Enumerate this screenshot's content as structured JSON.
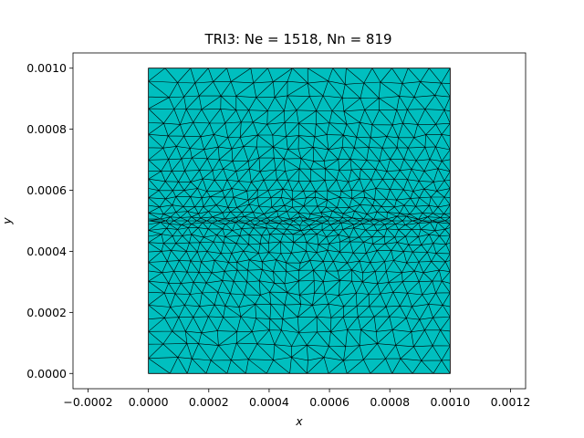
{
  "chart_data": {
    "type": "mesh",
    "title": "TRI3: Ne = 1518, Nn = 819",
    "xlabel": "x",
    "ylabel": "y",
    "xlim": [
      -0.00025,
      0.00125
    ],
    "ylim": [
      -5e-05,
      0.00105
    ],
    "domain": {
      "x": [
        0.0,
        0.001
      ],
      "y": [
        0.0,
        0.001
      ]
    },
    "element_count": 1518,
    "node_count": 819,
    "refinement_line_y": 0.0005,
    "fill_color": "#00bfbf",
    "edge_color": "#000000",
    "x_ticks": [
      {
        "value": -0.0002,
        "label": "−0.0002"
      },
      {
        "value": 0.0,
        "label": "0.0000"
      },
      {
        "value": 0.0002,
        "label": "0.0002"
      },
      {
        "value": 0.0004,
        "label": "0.0004"
      },
      {
        "value": 0.0006,
        "label": "0.0006"
      },
      {
        "value": 0.0008,
        "label": "0.0008"
      },
      {
        "value": 0.001,
        "label": "0.0010"
      },
      {
        "value": 0.0012,
        "label": "0.0012"
      }
    ],
    "y_ticks": [
      {
        "value": 0.0,
        "label": "0.0000"
      },
      {
        "value": 0.0002,
        "label": "0.0002"
      },
      {
        "value": 0.0004,
        "label": "0.0004"
      },
      {
        "value": 0.0006,
        "label": "0.0006"
      },
      {
        "value": 0.0008,
        "label": "0.0008"
      },
      {
        "value": 0.001,
        "label": "0.0010"
      }
    ],
    "grid": false
  }
}
